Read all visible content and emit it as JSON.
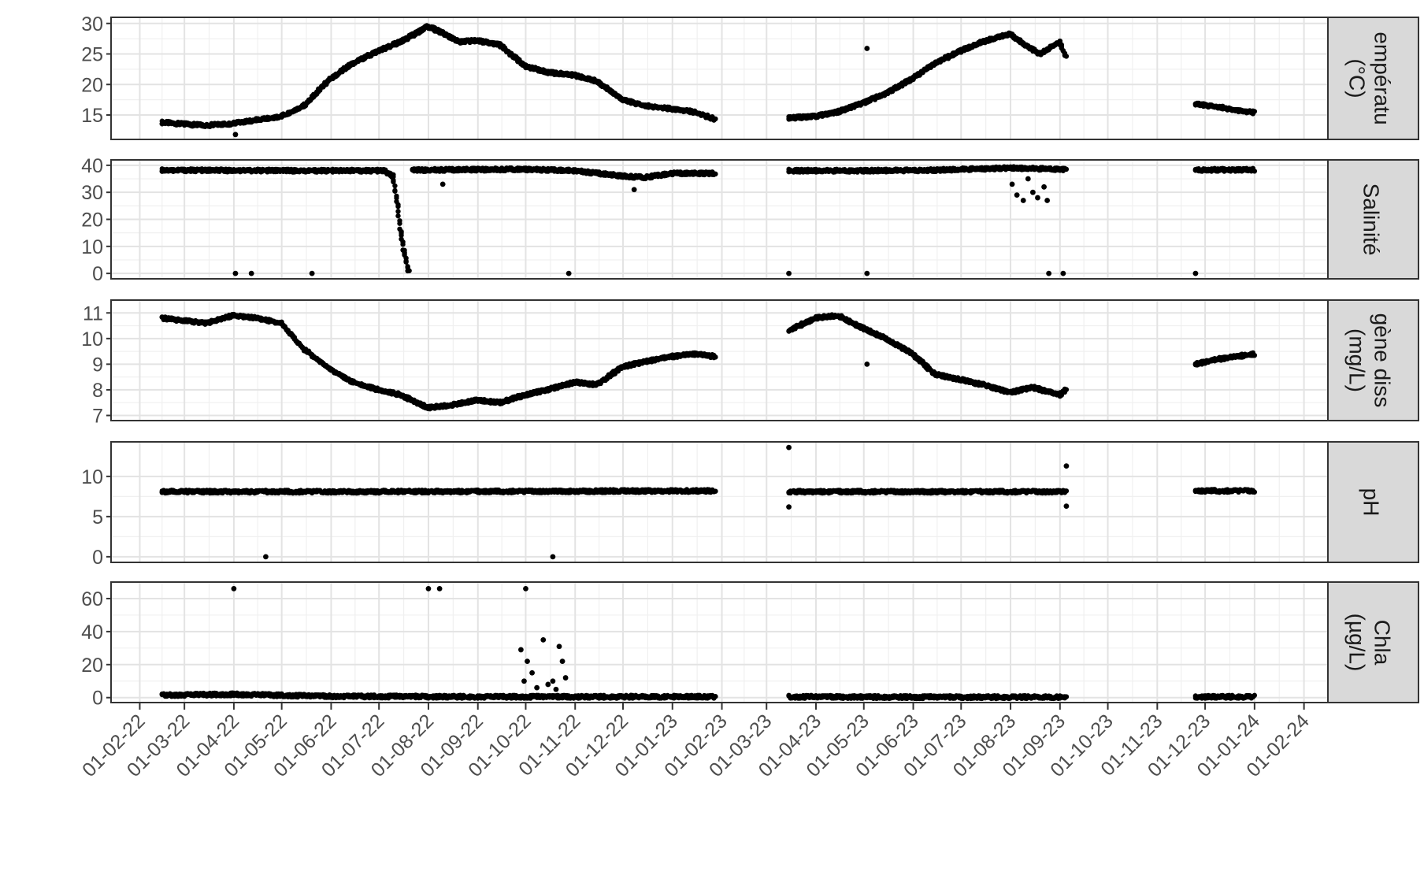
{
  "chart_data": {
    "type": "scatter",
    "x_axis": {
      "type": "date",
      "range": [
        "2022-01-14",
        "2024-02-16"
      ],
      "ticks": [
        {
          "date": "2022-02-01",
          "label": "01-02-22"
        },
        {
          "date": "2022-03-01",
          "label": "01-03-22"
        },
        {
          "date": "2022-04-01",
          "label": "01-04-22"
        },
        {
          "date": "2022-05-01",
          "label": "01-05-22"
        },
        {
          "date": "2022-06-01",
          "label": "01-06-22"
        },
        {
          "date": "2022-07-01",
          "label": "01-07-22"
        },
        {
          "date": "2022-08-01",
          "label": "01-08-22"
        },
        {
          "date": "2022-09-01",
          "label": "01-09-22"
        },
        {
          "date": "2022-10-01",
          "label": "01-10-22"
        },
        {
          "date": "2022-11-01",
          "label": "01-11-22"
        },
        {
          "date": "2022-12-01",
          "label": "01-12-22"
        },
        {
          "date": "2023-01-01",
          "label": "01-01-23"
        },
        {
          "date": "2023-02-01",
          "label": "01-02-23"
        },
        {
          "date": "2023-03-01",
          "label": "01-03-23"
        },
        {
          "date": "2023-04-01",
          "label": "01-04-23"
        },
        {
          "date": "2023-05-01",
          "label": "01-05-23"
        },
        {
          "date": "2023-06-01",
          "label": "01-06-23"
        },
        {
          "date": "2023-07-01",
          "label": "01-07-23"
        },
        {
          "date": "2023-08-01",
          "label": "01-08-23"
        },
        {
          "date": "2023-09-01",
          "label": "01-09-23"
        },
        {
          "date": "2023-10-01",
          "label": "01-10-23"
        },
        {
          "date": "2023-11-01",
          "label": "01-11-23"
        },
        {
          "date": "2023-12-01",
          "label": "01-12-23"
        },
        {
          "date": "2024-01-01",
          "label": "01-01-24"
        },
        {
          "date": "2024-02-01",
          "label": "01-02-24"
        }
      ],
      "label_angle": -45
    },
    "grid": true,
    "marker_color": "#000000",
    "panels": [
      {
        "strip": [
          "empératu",
          "(°C)"
        ],
        "ylim": [
          11,
          31
        ],
        "yticks": [
          15,
          20,
          25,
          30
        ],
        "series": [
          {
            "points": [
              [
                "2022-02-15",
                13.8
              ],
              [
                "2022-03-01",
                13.5
              ],
              [
                "2022-03-15",
                13.3
              ],
              [
                "2022-04-01",
                13.6
              ],
              [
                "2022-04-15",
                14.2
              ],
              [
                "2022-05-01",
                14.8
              ],
              [
                "2022-05-15",
                16.5
              ],
              [
                "2022-06-01",
                21
              ],
              [
                "2022-06-15",
                23.5
              ],
              [
                "2022-07-01",
                25.5
              ],
              [
                "2022-07-15",
                27
              ],
              [
                "2022-08-01",
                29.5
              ],
              [
                "2022-08-10",
                28.5
              ],
              [
                "2022-08-20",
                27
              ],
              [
                "2022-09-01",
                27.2
              ],
              [
                "2022-09-15",
                26.5
              ],
              [
                "2022-10-01",
                23
              ],
              [
                "2022-10-15",
                22
              ],
              [
                "2022-11-01",
                21.5
              ],
              [
                "2022-11-15",
                20.5
              ],
              [
                "2022-12-01",
                17.5
              ],
              [
                "2022-12-15",
                16.5
              ],
              [
                "2023-01-01",
                16
              ],
              [
                "2023-01-15",
                15.5
              ],
              [
                "2023-01-28",
                14.3
              ]
            ]
          },
          {
            "points": [
              [
                "2023-03-15",
                14.5
              ],
              [
                "2023-04-01",
                14.8
              ],
              [
                "2023-04-15",
                15.5
              ],
              [
                "2023-05-01",
                17
              ],
              [
                "2023-05-15",
                18.5
              ],
              [
                "2023-06-01",
                21
              ],
              [
                "2023-06-15",
                23.5
              ],
              [
                "2023-07-01",
                25.5
              ],
              [
                "2023-07-15",
                27
              ],
              [
                "2023-08-01",
                28.3
              ],
              [
                "2023-08-10",
                26.5
              ],
              [
                "2023-08-20",
                25
              ],
              [
                "2023-09-01",
                27
              ],
              [
                "2023-09-05",
                24.5
              ]
            ]
          },
          {
            "points": [
              [
                "2023-11-25",
                16.8
              ],
              [
                "2023-12-10",
                16.3
              ],
              [
                "2023-12-20",
                15.8
              ],
              [
                "2024-01-01",
                15.4
              ]
            ]
          }
        ],
        "outliers": [
          [
            "2022-04-02",
            11.8
          ],
          [
            "2023-05-03",
            25.9
          ]
        ]
      },
      {
        "strip": [
          "Salinité"
        ],
        "ylim": [
          -2,
          42
        ],
        "yticks": [
          0,
          10,
          20,
          30,
          40
        ],
        "series": [
          {
            "points": [
              [
                "2022-02-15",
                38.2
              ],
              [
                "2022-04-01",
                38.1
              ],
              [
                "2022-05-15",
                38
              ],
              [
                "2022-06-15",
                38
              ],
              [
                "2022-07-05",
                38
              ],
              [
                "2022-07-10",
                36
              ],
              [
                "2022-07-13",
                25
              ],
              [
                "2022-07-15",
                15
              ],
              [
                "2022-07-17",
                8
              ],
              [
                "2022-07-20",
                0.5
              ]
            ]
          },
          {
            "points": [
              [
                "2022-07-22",
                38.2
              ],
              [
                "2022-09-01",
                38.4
              ],
              [
                "2022-10-01",
                38.5
              ],
              [
                "2022-11-01",
                38
              ],
              [
                "2022-12-01",
                36
              ],
              [
                "2022-12-15",
                35.5
              ],
              [
                "2023-01-01",
                37
              ],
              [
                "2023-01-28",
                37
              ]
            ]
          },
          {
            "points": [
              [
                "2023-03-15",
                38
              ],
              [
                "2023-05-01",
                38
              ],
              [
                "2023-06-15",
                38.2
              ],
              [
                "2023-08-01",
                39
              ],
              [
                "2023-09-05",
                38.5
              ]
            ]
          },
          {
            "points": [
              [
                "2023-11-25",
                38.3
              ],
              [
                "2024-01-01",
                38.3
              ]
            ]
          }
        ],
        "outliers": [
          [
            "2022-04-02",
            0
          ],
          [
            "2022-04-12",
            0
          ],
          [
            "2022-05-20",
            0
          ],
          [
            "2022-10-28",
            0
          ],
          [
            "2023-03-15",
            0
          ],
          [
            "2023-05-03",
            0
          ],
          [
            "2023-08-25",
            0
          ],
          [
            "2023-09-03",
            0
          ],
          [
            "2023-11-25",
            0
          ],
          [
            "2022-08-10",
            33
          ],
          [
            "2022-12-08",
            31
          ],
          [
            "2023-08-02",
            33
          ],
          [
            "2023-08-05",
            29
          ],
          [
            "2023-08-09",
            27
          ],
          [
            "2023-08-12",
            35
          ],
          [
            "2023-08-15",
            30
          ],
          [
            "2023-08-18",
            28
          ],
          [
            "2023-08-22",
            32
          ],
          [
            "2023-08-24",
            27
          ]
        ]
      },
      {
        "strip": [
          "gène diss",
          "(mg/L)"
        ],
        "ylim": [
          6.8,
          11.5
        ],
        "yticks": [
          7,
          8,
          9,
          10,
          11
        ],
        "series": [
          {
            "points": [
              [
                "2022-02-15",
                10.8
              ],
              [
                "2022-03-01",
                10.7
              ],
              [
                "2022-03-15",
                10.6
              ],
              [
                "2022-04-01",
                10.9
              ],
              [
                "2022-04-15",
                10.8
              ],
              [
                "2022-05-01",
                10.6
              ],
              [
                "2022-05-15",
                9.6
              ],
              [
                "2022-06-01",
                8.8
              ],
              [
                "2022-06-15",
                8.3
              ],
              [
                "2022-07-01",
                8
              ],
              [
                "2022-07-15",
                7.8
              ],
              [
                "2022-08-01",
                7.3
              ],
              [
                "2022-08-15",
                7.4
              ],
              [
                "2022-09-01",
                7.6
              ],
              [
                "2022-09-15",
                7.5
              ],
              [
                "2022-10-01",
                7.8
              ],
              [
                "2022-10-15",
                8
              ],
              [
                "2022-11-01",
                8.3
              ],
              [
                "2022-11-15",
                8.2
              ],
              [
                "2022-12-01",
                8.9
              ],
              [
                "2022-12-15",
                9.1
              ],
              [
                "2023-01-01",
                9.3
              ],
              [
                "2023-01-15",
                9.4
              ],
              [
                "2023-01-28",
                9.3
              ]
            ]
          },
          {
            "points": [
              [
                "2023-03-15",
                10.3
              ],
              [
                "2023-04-01",
                10.8
              ],
              [
                "2023-04-15",
                10.9
              ],
              [
                "2023-05-01",
                10.4
              ],
              [
                "2023-05-15",
                10
              ],
              [
                "2023-06-01",
                9.4
              ],
              [
                "2023-06-15",
                8.6
              ],
              [
                "2023-07-01",
                8.4
              ],
              [
                "2023-07-15",
                8.2
              ],
              [
                "2023-08-01",
                7.9
              ],
              [
                "2023-08-15",
                8.1
              ],
              [
                "2023-09-01",
                7.8
              ],
              [
                "2023-09-05",
                8
              ]
            ]
          },
          {
            "points": [
              [
                "2023-11-25",
                9
              ],
              [
                "2023-12-10",
                9.2
              ],
              [
                "2024-01-01",
                9.4
              ]
            ]
          }
        ],
        "outliers": [
          [
            "2023-05-03",
            9
          ]
        ]
      },
      {
        "strip": [
          "pH"
        ],
        "ylim": [
          -0.7,
          14.3
        ],
        "yticks": [
          0,
          5,
          10
        ],
        "series": [
          {
            "points": [
              [
                "2022-02-15",
                8.1
              ],
              [
                "2022-07-01",
                8.1
              ],
              [
                "2023-01-28",
                8.2
              ]
            ]
          },
          {
            "points": [
              [
                "2023-03-15",
                8.1
              ],
              [
                "2023-06-15",
                8.1
              ],
              [
                "2023-09-05",
                8.1
              ]
            ]
          },
          {
            "points": [
              [
                "2023-11-25",
                8.2
              ],
              [
                "2024-01-01",
                8.2
              ]
            ]
          }
        ],
        "outliers": [
          [
            "2022-04-21",
            0
          ],
          [
            "2022-10-18",
            0
          ],
          [
            "2023-03-15",
            13.6
          ],
          [
            "2023-03-15",
            6.2
          ],
          [
            "2023-09-05",
            11.3
          ],
          [
            "2023-09-05",
            6.3
          ]
        ]
      },
      {
        "strip": [
          "Chla",
          "(µg/L)"
        ],
        "ylim": [
          -3,
          70
        ],
        "yticks": [
          0,
          20,
          40,
          60
        ],
        "series": [
          {
            "points": [
              [
                "2022-02-15",
                1.5
              ],
              [
                "2022-04-01",
                2
              ],
              [
                "2022-06-01",
                0.8
              ],
              [
                "2022-09-01",
                0.5
              ],
              [
                "2023-01-28",
                0.5
              ]
            ]
          },
          {
            "points": [
              [
                "2023-03-15",
                0.5
              ],
              [
                "2023-06-01",
                0.3
              ],
              [
                "2023-09-05",
                0.3
              ]
            ]
          },
          {
            "points": [
              [
                "2023-11-25",
                0.5
              ],
              [
                "2024-01-01",
                0.5
              ]
            ]
          }
        ],
        "outliers": [
          [
            "2022-04-01",
            66
          ],
          [
            "2022-08-01",
            66
          ],
          [
            "2022-08-08",
            66
          ],
          [
            "2022-10-01",
            66
          ],
          [
            "2022-09-28",
            29
          ],
          [
            "2022-10-02",
            22
          ],
          [
            "2022-10-05",
            15
          ],
          [
            "2022-09-30",
            10
          ],
          [
            "2022-10-08",
            6
          ],
          [
            "2022-10-12",
            35
          ],
          [
            "2022-10-22",
            31
          ],
          [
            "2022-10-24",
            22
          ],
          [
            "2022-10-18",
            10
          ],
          [
            "2022-10-26",
            12
          ],
          [
            "2022-10-15",
            8
          ],
          [
            "2022-10-20",
            5
          ]
        ]
      }
    ]
  }
}
